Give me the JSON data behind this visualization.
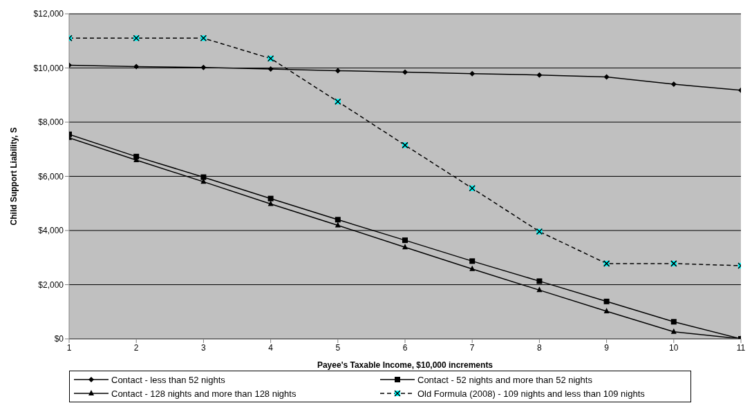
{
  "chart_data": {
    "type": "line",
    "xlabel": "Payee's Taxable Income, $10,000 increments",
    "ylabel": "Child Support Liability, S",
    "x": [
      1,
      2,
      3,
      4,
      5,
      6,
      7,
      8,
      9,
      10,
      11
    ],
    "xlim": [
      1,
      11
    ],
    "xticks": [
      1,
      2,
      3,
      4,
      5,
      6,
      7,
      8,
      9,
      10,
      11
    ],
    "ylim": [
      0,
      12000
    ],
    "yticks": [
      {
        "value": 0,
        "label": "$0"
      },
      {
        "value": 2000,
        "label": "$2,000"
      },
      {
        "value": 4000,
        "label": "$4,000"
      },
      {
        "value": 6000,
        "label": "$6,000"
      },
      {
        "value": 8000,
        "label": "$8,000"
      },
      {
        "value": 10000,
        "label": "$10,000"
      },
      {
        "value": 12000,
        "label": "$12,000"
      }
    ],
    "grid": "y",
    "legend": "bottom",
    "series": [
      {
        "name": "Contact - less than 52 nights",
        "color": "#000000",
        "marker": "diamond",
        "line_style": "solid",
        "values": [
          10100,
          10050,
          10020,
          9960,
          9900,
          9850,
          9790,
          9740,
          9670,
          9400,
          9180
        ]
      },
      {
        "name": "Contact - 52 nights and more than 52 nights",
        "color": "#000000",
        "marker": "square",
        "line_style": "solid",
        "values": [
          7550,
          6730,
          5970,
          5180,
          4400,
          3640,
          2870,
          2130,
          1380,
          630,
          0
        ]
      },
      {
        "name": "Contact - 128 nights and more than 128 nights",
        "color": "#000000",
        "marker": "triangle",
        "line_style": "solid",
        "values": [
          7420,
          6600,
          5800,
          4980,
          4190,
          3380,
          2580,
          1800,
          1020,
          260,
          0
        ]
      },
      {
        "name": "Old Formula (2008) - 109 nights and less than 109 nights",
        "color": "#000000",
        "marker": "cross",
        "line_style": "dashed",
        "values": [
          11100,
          11100,
          11100,
          10350,
          8760,
          7150,
          5560,
          3960,
          2780,
          2780,
          2700
        ]
      }
    ]
  }
}
